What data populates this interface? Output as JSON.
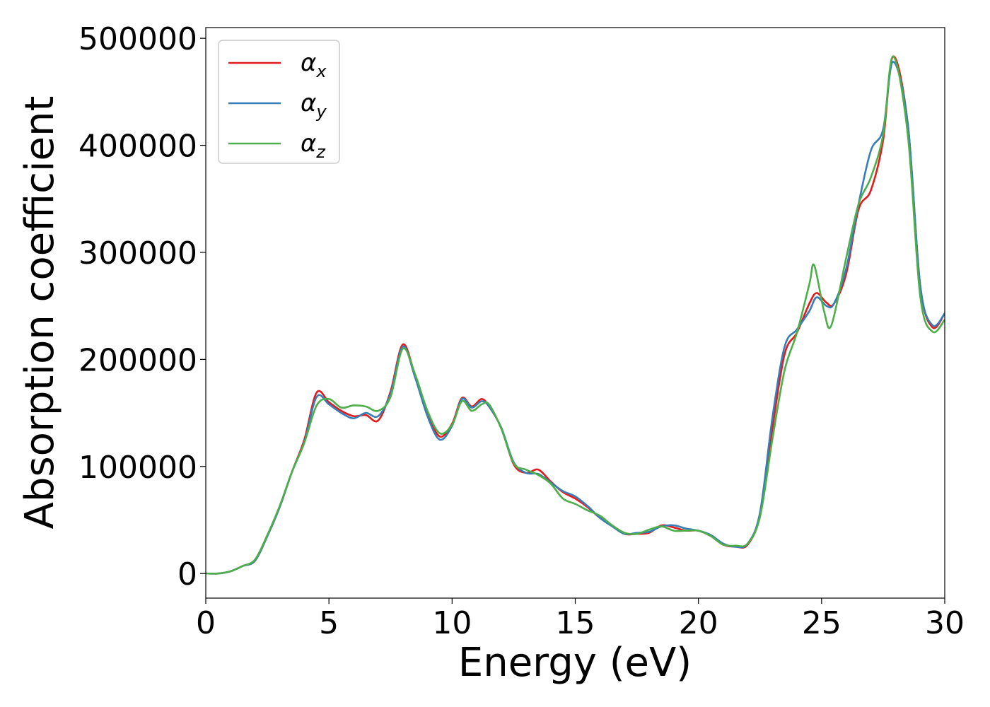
{
  "chart_data": {
    "type": "line",
    "xlabel": "Energy (eV)",
    "ylabel": "Absorption coefficient",
    "xlim": [
      0,
      30
    ],
    "ylim": [
      -23000,
      510000
    ],
    "xticks": [
      0,
      5,
      10,
      15,
      20,
      25,
      30
    ],
    "xtick_labels": [
      "0",
      "5",
      "10",
      "15",
      "20",
      "25",
      "30"
    ],
    "yticks": [
      0,
      100000,
      200000,
      300000,
      400000,
      500000
    ],
    "ytick_labels": [
      "0",
      "100000",
      "200000",
      "300000",
      "400000",
      "500000"
    ],
    "grid": false,
    "legend_position": "top-left",
    "series": [
      {
        "name": "α",
        "subscript": "x",
        "color": "#e41a1c",
        "points": [
          [
            0,
            0
          ],
          [
            0.5,
            0
          ],
          [
            1,
            2000
          ],
          [
            1.5,
            7000
          ],
          [
            2,
            12000
          ],
          [
            2.5,
            35000
          ],
          [
            3,
            62000
          ],
          [
            3.5,
            95000
          ],
          [
            4,
            125000
          ],
          [
            4.5,
            169000
          ],
          [
            5,
            160000
          ],
          [
            5.5,
            152000
          ],
          [
            6,
            147000
          ],
          [
            6.5,
            148000
          ],
          [
            7,
            143000
          ],
          [
            7.5,
            170000
          ],
          [
            8,
            214000
          ],
          [
            8.5,
            185000
          ],
          [
            9,
            150000
          ],
          [
            9.5,
            128000
          ],
          [
            10,
            140000
          ],
          [
            10.4,
            164000
          ],
          [
            10.8,
            156000
          ],
          [
            11.2,
            163000
          ],
          [
            11.5,
            156000
          ],
          [
            12,
            136000
          ],
          [
            12.5,
            102000
          ],
          [
            13,
            94000
          ],
          [
            13.5,
            97000
          ],
          [
            14,
            86000
          ],
          [
            14.5,
            76000
          ],
          [
            15,
            70000
          ],
          [
            15.5,
            62000
          ],
          [
            16,
            52000
          ],
          [
            16.5,
            45000
          ],
          [
            17,
            37000
          ],
          [
            17.5,
            37000
          ],
          [
            18,
            38000
          ],
          [
            18.5,
            45000
          ],
          [
            19,
            43000
          ],
          [
            19.5,
            40000
          ],
          [
            20,
            40000
          ],
          [
            20.5,
            35000
          ],
          [
            21,
            27000
          ],
          [
            21.5,
            25000
          ],
          [
            22,
            27000
          ],
          [
            22.5,
            55000
          ],
          [
            23,
            135000
          ],
          [
            23.5,
            205000
          ],
          [
            24,
            225000
          ],
          [
            24.5,
            252000
          ],
          [
            24.8,
            262000
          ],
          [
            25.2,
            253000
          ],
          [
            25.5,
            252000
          ],
          [
            26,
            280000
          ],
          [
            26.5,
            340000
          ],
          [
            27,
            358000
          ],
          [
            27.5,
            405000
          ],
          [
            27.9,
            483000
          ],
          [
            28.5,
            420000
          ],
          [
            29,
            270000
          ],
          [
            29.5,
            230000
          ],
          [
            30,
            243000
          ]
        ]
      },
      {
        "name": "α",
        "subscript": "y",
        "color": "#377eb8",
        "points": [
          [
            0,
            0
          ],
          [
            0.5,
            0
          ],
          [
            1,
            2000
          ],
          [
            1.5,
            7000
          ],
          [
            2,
            12000
          ],
          [
            2.5,
            35000
          ],
          [
            3,
            62000
          ],
          [
            3.5,
            95000
          ],
          [
            4,
            123000
          ],
          [
            4.5,
            165000
          ],
          [
            5,
            158000
          ],
          [
            5.5,
            150000
          ],
          [
            6,
            145000
          ],
          [
            6.5,
            150000
          ],
          [
            7,
            147000
          ],
          [
            7.5,
            168000
          ],
          [
            8,
            212000
          ],
          [
            8.5,
            183000
          ],
          [
            9,
            147000
          ],
          [
            9.5,
            125000
          ],
          [
            10,
            138000
          ],
          [
            10.4,
            163000
          ],
          [
            10.8,
            155000
          ],
          [
            11.2,
            161000
          ],
          [
            11.5,
            156000
          ],
          [
            12,
            136000
          ],
          [
            12.5,
            104000
          ],
          [
            13,
            94000
          ],
          [
            13.5,
            93000
          ],
          [
            14,
            85000
          ],
          [
            14.5,
            77000
          ],
          [
            15,
            72000
          ],
          [
            15.5,
            63000
          ],
          [
            16,
            52000
          ],
          [
            16.5,
            44000
          ],
          [
            17,
            37000
          ],
          [
            17.5,
            38000
          ],
          [
            18,
            39000
          ],
          [
            18.5,
            44000
          ],
          [
            19,
            45000
          ],
          [
            19.5,
            42000
          ],
          [
            20,
            40000
          ],
          [
            20.5,
            36000
          ],
          [
            21,
            28000
          ],
          [
            21.5,
            25000
          ],
          [
            22,
            28000
          ],
          [
            22.5,
            57000
          ],
          [
            23,
            145000
          ],
          [
            23.5,
            212000
          ],
          [
            24,
            228000
          ],
          [
            24.5,
            245000
          ],
          [
            24.8,
            258000
          ],
          [
            25.2,
            250000
          ],
          [
            25.5,
            252000
          ],
          [
            26,
            285000
          ],
          [
            26.5,
            345000
          ],
          [
            27,
            395000
          ],
          [
            27.5,
            415000
          ],
          [
            27.9,
            478000
          ],
          [
            28.5,
            420000
          ],
          [
            29,
            270000
          ],
          [
            29.5,
            232000
          ],
          [
            30,
            243000
          ]
        ]
      },
      {
        "name": "α",
        "subscript": "z",
        "color": "#4daf4a",
        "points": [
          [
            0,
            0
          ],
          [
            0.5,
            0
          ],
          [
            1,
            2000
          ],
          [
            1.5,
            7000
          ],
          [
            2,
            13000
          ],
          [
            2.5,
            36000
          ],
          [
            3,
            63000
          ],
          [
            3.5,
            95000
          ],
          [
            4,
            122000
          ],
          [
            4.5,
            157000
          ],
          [
            5,
            163000
          ],
          [
            5.5,
            155000
          ],
          [
            6,
            157000
          ],
          [
            6.5,
            156000
          ],
          [
            7,
            152000
          ],
          [
            7.5,
            165000
          ],
          [
            8,
            210000
          ],
          [
            8.5,
            186000
          ],
          [
            9,
            152000
          ],
          [
            9.5,
            131000
          ],
          [
            10,
            139000
          ],
          [
            10.4,
            161000
          ],
          [
            10.8,
            152000
          ],
          [
            11.2,
            158000
          ],
          [
            11.5,
            158000
          ],
          [
            12,
            135000
          ],
          [
            12.5,
            103000
          ],
          [
            13,
            97000
          ],
          [
            13.5,
            92000
          ],
          [
            14,
            84000
          ],
          [
            14.5,
            70000
          ],
          [
            15,
            65000
          ],
          [
            15.5,
            59000
          ],
          [
            16,
            54000
          ],
          [
            16.5,
            45000
          ],
          [
            17,
            38000
          ],
          [
            17.5,
            37000
          ],
          [
            18,
            41000
          ],
          [
            18.5,
            44000
          ],
          [
            19,
            40000
          ],
          [
            19.5,
            40000
          ],
          [
            20,
            40000
          ],
          [
            20.5,
            35000
          ],
          [
            21,
            27000
          ],
          [
            21.5,
            26000
          ],
          [
            22,
            28000
          ],
          [
            22.5,
            53000
          ],
          [
            23,
            125000
          ],
          [
            23.5,
            190000
          ],
          [
            24,
            225000
          ],
          [
            24.5,
            270000
          ],
          [
            24.7,
            288000
          ],
          [
            25.1,
            245000
          ],
          [
            25.4,
            232000
          ],
          [
            26,
            295000
          ],
          [
            26.5,
            345000
          ],
          [
            27,
            370000
          ],
          [
            27.5,
            410000
          ],
          [
            27.9,
            483000
          ],
          [
            28.5,
            410000
          ],
          [
            29,
            260000
          ],
          [
            29.5,
            226000
          ],
          [
            30,
            237000
          ]
        ]
      }
    ]
  }
}
